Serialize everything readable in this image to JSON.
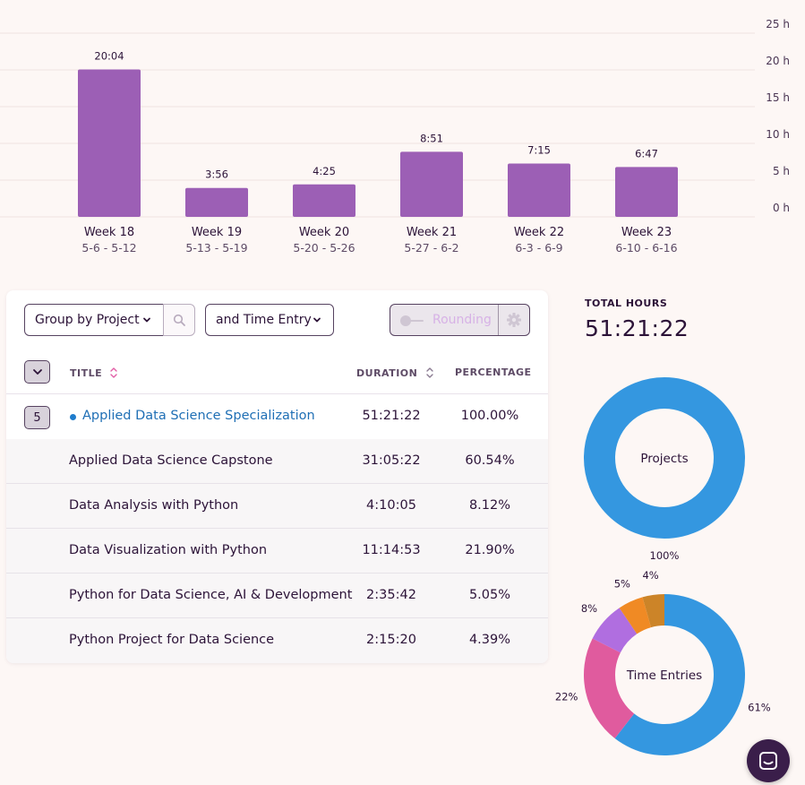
{
  "chart_data": [
    {
      "type": "bar",
      "title": "",
      "categories": [
        "Week 18",
        "Week 19",
        "Week 20",
        "Week 21",
        "Week 22",
        "Week 23"
      ],
      "subcategories": [
        "5-6 - 5-12",
        "5-13 - 5-19",
        "5-20 - 5-26",
        "5-27 - 6-2",
        "6-3 - 6-9",
        "6-10 - 6-16"
      ],
      "values": [
        20.067,
        3.933,
        4.417,
        8.85,
        7.25,
        6.783
      ],
      "value_labels": [
        "20:04",
        "3:56",
        "4:25",
        "8:51",
        "7:15",
        "6:47"
      ],
      "ylim": [
        0,
        25
      ],
      "yticks": [
        0,
        5,
        10,
        15,
        20,
        25
      ],
      "ytick_labels": [
        "0 h",
        "5 h",
        "10 h",
        "15 h",
        "20 h",
        "25 h"
      ],
      "y_axis_side": "right",
      "grid": true,
      "bar_color": "#9c5fb5"
    },
    {
      "type": "pie",
      "title": "Projects",
      "labels": [
        "Applied Data Science Specialization"
      ],
      "values": [
        100
      ],
      "value_labels": [
        "100%"
      ],
      "colors": [
        "#3497e0"
      ]
    },
    {
      "type": "pie",
      "title": "Time Entries",
      "labels": [
        "Applied Data Science Capstone",
        "Data Visualization with Python",
        "Data Analysis with Python",
        "Python for Data Science, AI & Development",
        "Python Project for Data Science"
      ],
      "values": [
        60.54,
        21.9,
        8.12,
        5.05,
        4.39
      ],
      "value_labels": [
        "61%",
        "22%",
        "8%",
        "5%",
        "4%"
      ],
      "colors": [
        "#3497e0",
        "#e05b9e",
        "#b06ee0",
        "#f08a24",
        "#cc8428"
      ]
    }
  ],
  "toolbar": {
    "group_by": "Group by Project",
    "sub_group": "and Time Entry",
    "rounding_label": "Rounding"
  },
  "table": {
    "columns": {
      "title": "TITLE",
      "duration": "DURATION",
      "percentage": "PERCENTAGE"
    },
    "group": {
      "count": "5",
      "name": "Applied Data Science Specialization",
      "duration": "51:21:22",
      "percentage": "100.00%",
      "color": "#1f7ccc"
    },
    "rows": [
      {
        "title": "Applied Data Science Capstone",
        "duration": "31:05:22",
        "percentage": "60.54%"
      },
      {
        "title": "Data Analysis with Python",
        "duration": "4:10:05",
        "percentage": "8.12%"
      },
      {
        "title": "Data Visualization with Python",
        "duration": "11:14:53",
        "percentage": "21.90%"
      },
      {
        "title": "Python for Data Science, AI & Development",
        "duration": "2:35:42",
        "percentage": "5.05%"
      },
      {
        "title": "Python Project for Data Science",
        "duration": "2:15:20",
        "percentage": "4.39%"
      }
    ]
  },
  "summary": {
    "total_label": "TOTAL HOURS",
    "total_value": "51:21:22"
  },
  "icons": {
    "search": "search-icon",
    "gear": "gear-icon",
    "chevron": "chevron-down-icon",
    "sort": "sort-icon",
    "chat": "chat-icon"
  }
}
